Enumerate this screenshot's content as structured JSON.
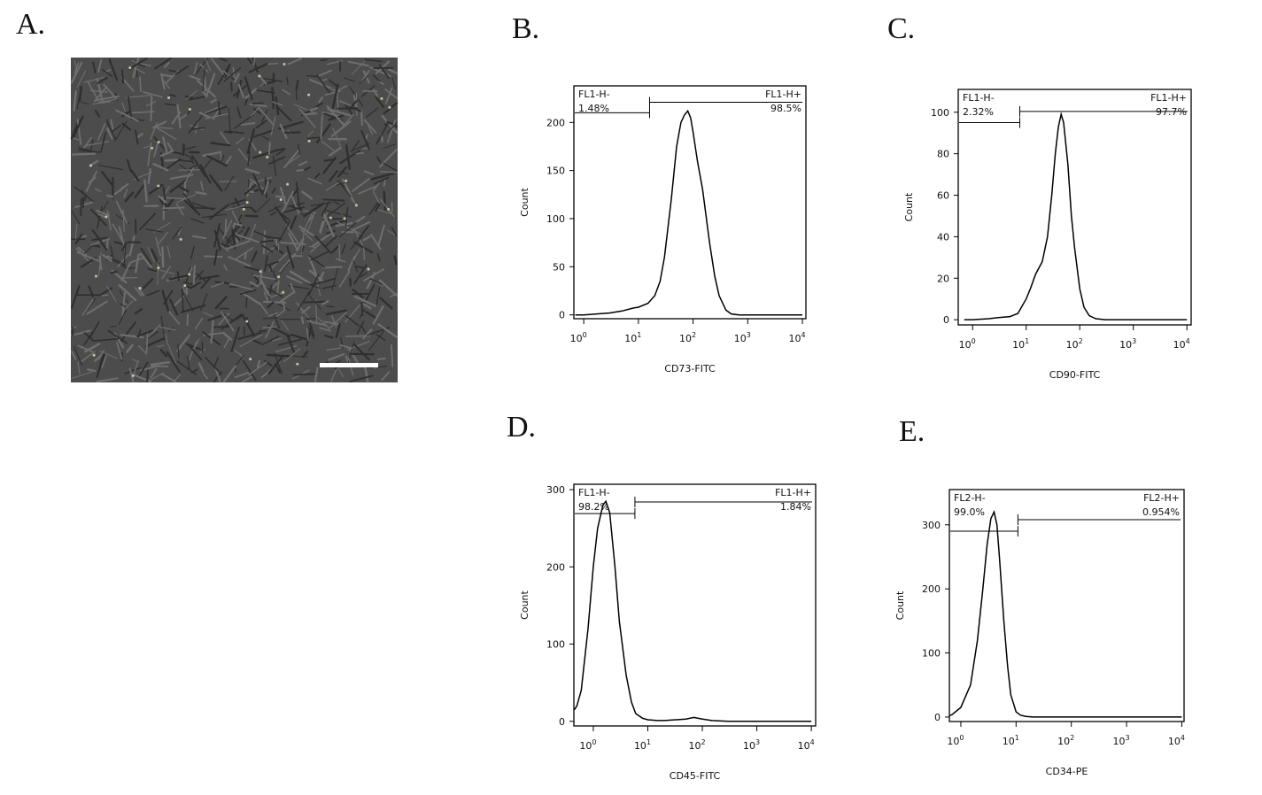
{
  "image_panel": {
    "panel": "A."
  },
  "chart_data": [
    {
      "type": "histogram-line",
      "panel": "B.",
      "xlabel": "CD73-FITC",
      "ylabel": "Count",
      "xscale": "log",
      "color": "#000000",
      "xlim": [
        0.66,
        11600
      ],
      "ylim": [
        -4,
        238
      ],
      "yticks": [
        0,
        50,
        100,
        150,
        200
      ],
      "xticks": [
        {
          "value": 1,
          "label": "10^0"
        },
        {
          "value": 10,
          "label": "10^1"
        },
        {
          "value": 100,
          "label": "10^2"
        },
        {
          "value": 1000,
          "label": "10^3"
        },
        {
          "value": 10000,
          "label": "10^4"
        }
      ],
      "x": [
        0.7,
        1,
        3,
        5,
        8,
        10,
        15,
        20,
        25,
        30,
        40,
        50,
        60,
        70,
        80,
        90,
        100,
        120,
        150,
        200,
        250,
        300,
        400,
        500,
        700,
        1000,
        3000,
        10000
      ],
      "values": [
        0,
        0,
        2,
        4,
        7,
        8,
        12,
        20,
        35,
        60,
        120,
        175,
        200,
        208,
        212,
        205,
        190,
        160,
        130,
        75,
        40,
        20,
        5,
        1,
        0,
        0,
        0,
        0
      ],
      "gate_split": 16,
      "gates": [
        {
          "name": "FL1-H-",
          "percent_label": "1.48%",
          "y": 210
        },
        {
          "name": "FL1-H+",
          "percent_label": "98.5%",
          "y": 221
        }
      ]
    },
    {
      "type": "histogram-line",
      "panel": "C.",
      "xlabel": "CD90-FITC",
      "ylabel": "Count",
      "xscale": "log",
      "color": "#000000",
      "xlim": [
        0.54,
        12000
      ],
      "ylim": [
        -2.5,
        111
      ],
      "yticks": [
        0,
        20,
        40,
        60,
        80,
        100
      ],
      "xticks": [
        {
          "value": 1,
          "label": "10^0"
        },
        {
          "value": 10,
          "label": "10^1"
        },
        {
          "value": 100,
          "label": "10^2"
        },
        {
          "value": 1000,
          "label": "10^3"
        },
        {
          "value": 10000,
          "label": "10^4"
        }
      ],
      "x": [
        0.7,
        1,
        2,
        3,
        5,
        7,
        10,
        12,
        15,
        20,
        25,
        30,
        35,
        40,
        45,
        50,
        60,
        70,
        80,
        100,
        120,
        150,
        200,
        300,
        500,
        1000,
        10000
      ],
      "values": [
        0,
        0,
        0.5,
        1,
        1.5,
        3,
        10,
        15,
        22,
        28,
        40,
        60,
        80,
        93,
        99,
        95,
        75,
        50,
        35,
        15,
        6,
        2,
        0.5,
        0,
        0,
        0,
        0
      ],
      "gate_split": 7.6,
      "gates": [
        {
          "name": "FL1-H-",
          "percent_label": "2.32%",
          "y": 95
        },
        {
          "name": "FL1-H+",
          "percent_label": "97.7%",
          "y": 100.4
        }
      ]
    },
    {
      "type": "histogram-line",
      "panel": "D.",
      "xlabel": "CD45-FITC",
      "ylabel": "Count",
      "xscale": "log",
      "color": "#000000",
      "xlim": [
        0.44,
        12000
      ],
      "ylim": [
        -6,
        307
      ],
      "yticks": [
        0,
        100,
        200,
        300
      ],
      "xticks": [
        {
          "value": 1,
          "label": "10^0"
        },
        {
          "value": 10,
          "label": "10^1"
        },
        {
          "value": 100,
          "label": "10^2"
        },
        {
          "value": 1000,
          "label": "10^3"
        },
        {
          "value": 10000,
          "label": "10^4"
        }
      ],
      "x": [
        0.45,
        0.5,
        0.6,
        0.8,
        1,
        1.2,
        1.5,
        1.7,
        2,
        2.5,
        3,
        4,
        5,
        6,
        8,
        10,
        15,
        20,
        50,
        70,
        100,
        150,
        300,
        1000,
        10000
      ],
      "values": [
        15,
        20,
        40,
        120,
        200,
        250,
        280,
        285,
        270,
        200,
        130,
        60,
        25,
        10,
        4,
        2,
        1,
        1,
        3,
        5,
        3,
        1,
        0,
        0,
        0
      ],
      "gate_split": 5.8,
      "gates": [
        {
          "name": "FL1-H-",
          "percent_label": "98.2%",
          "y": 269
        },
        {
          "name": "FL1-H+",
          "percent_label": "1.84%",
          "y": 284
        }
      ]
    },
    {
      "type": "histogram-line",
      "panel": "E.",
      "xlabel": "CD34-PE",
      "ylabel": "Count",
      "xscale": "log",
      "color": "#000000",
      "xlim": [
        0.62,
        11000
      ],
      "ylim": [
        -7,
        355
      ],
      "yticks": [
        0,
        100,
        200,
        300
      ],
      "xticks": [
        {
          "value": 1,
          "label": "10^0"
        },
        {
          "value": 10,
          "label": "10^1"
        },
        {
          "value": 100,
          "label": "10^2"
        },
        {
          "value": 1000,
          "label": "10^3"
        },
        {
          "value": 10000,
          "label": "10^4"
        }
      ],
      "x": [
        0.62,
        0.7,
        1,
        1.5,
        2,
        2.5,
        3,
        3.5,
        4,
        4.5,
        5,
        6,
        7,
        8,
        10,
        12,
        15,
        20,
        50,
        100,
        1000,
        10000
      ],
      "values": [
        2,
        4,
        15,
        50,
        120,
        200,
        270,
        310,
        320,
        300,
        250,
        150,
        80,
        35,
        8,
        3,
        1,
        0,
        0,
        0,
        0,
        0
      ],
      "gate_split": 10.8,
      "gates": [
        {
          "name": "FL2-H-",
          "percent_label": "99.0%",
          "y": 290
        },
        {
          "name": "FL2-H+",
          "percent_label": "0.954%",
          "y": 308
        }
      ]
    }
  ]
}
